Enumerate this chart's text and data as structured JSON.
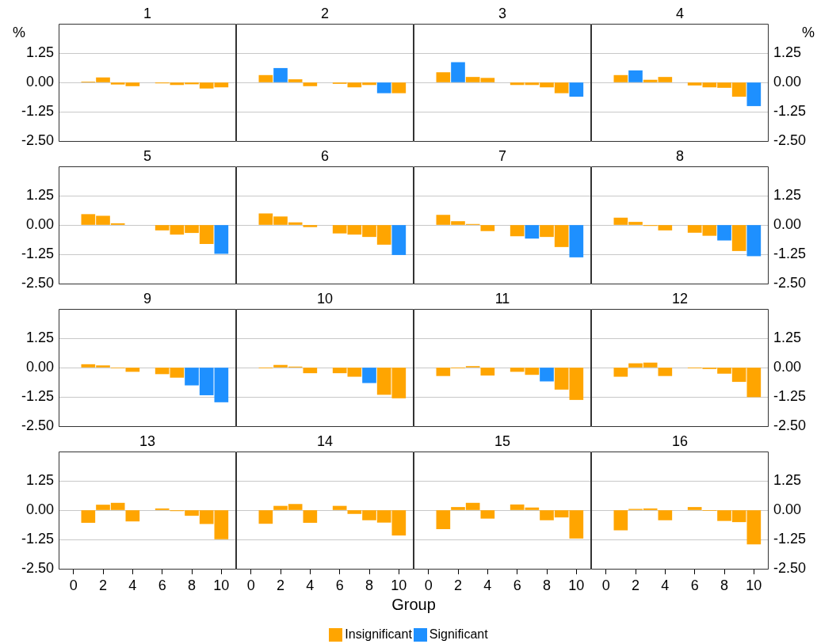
{
  "chart_data": [
    {
      "type": "bar",
      "title": "1",
      "ylabel": "%",
      "x": [
        1,
        2,
        3,
        4,
        6,
        7,
        8,
        9,
        10
      ],
      "series": [
        {
          "color": "#ffa500",
          "values": [
            0.01,
            0.2,
            -0.08,
            -0.15,
            -0.03,
            -0.1,
            -0.07,
            -0.25,
            -0.2
          ]
        },
        {
          "color": "#1e90ff",
          "values": [
            null,
            null,
            null,
            null,
            null,
            null,
            null,
            null,
            null
          ]
        }
      ],
      "xlim": [
        -1,
        11
      ],
      "xticks": [
        0,
        2,
        4,
        6,
        8,
        10
      ],
      "ylim": [
        -2.5,
        2.5
      ],
      "yticks": [
        {
          "value": -2.5,
          "label": "-2.50"
        },
        {
          "value": -1.25,
          "label": "-1.25"
        },
        {
          "value": 0,
          "label": "0.00"
        },
        1.25
      ],
      "grid": "y",
      "tick_labels": "y"
    },
    {
      "type": "bar",
      "title": "2",
      "x": [
        1,
        2,
        3,
        4,
        6,
        7,
        8,
        9,
        10
      ],
      "series": [
        {
          "color": "#ffa500",
          "values": [
            0.3,
            null,
            0.12,
            -0.15,
            -0.05,
            -0.2,
            -0.1,
            null,
            -0.45
          ]
        },
        {
          "color": "#1e90ff",
          "values": [
            null,
            0.6,
            null,
            null,
            null,
            null,
            null,
            -0.45,
            null
          ]
        }
      ],
      "xlim": [
        -1,
        11
      ],
      "xticks": [
        0,
        2,
        4,
        6,
        8,
        10
      ],
      "ylim": [
        -2.5,
        2.5
      ],
      "yticks": [
        -2.5,
        -1.25,
        0,
        1.25
      ],
      "grid": "y",
      "tick_labels": false
    },
    {
      "type": "bar",
      "title": "3",
      "x": [
        1,
        2,
        3,
        4,
        6,
        7,
        8,
        9,
        10
      ],
      "series": [
        {
          "color": "#ffa500",
          "values": [
            0.42,
            null,
            0.22,
            0.18,
            -0.1,
            -0.1,
            -0.2,
            -0.45,
            null
          ]
        },
        {
          "color": "#1e90ff",
          "values": [
            null,
            0.85,
            null,
            null,
            null,
            null,
            null,
            null,
            -0.6
          ]
        }
      ],
      "xlim": [
        -1,
        11
      ],
      "xticks": [
        0,
        2,
        4,
        6,
        8,
        10
      ],
      "ylim": [
        -2.5,
        2.5
      ],
      "yticks": [
        -2.5,
        -1.25,
        0,
        1.25
      ],
      "grid": "y",
      "tick_labels": false
    },
    {
      "type": "bar",
      "title": "4",
      "ylabel": "%",
      "x": [
        1,
        2,
        3,
        4,
        6,
        7,
        8,
        9,
        10
      ],
      "series": [
        {
          "color": "#ffa500",
          "values": [
            0.3,
            null,
            0.1,
            0.22,
            -0.12,
            -0.2,
            -0.22,
            -0.6,
            null
          ]
        },
        {
          "color": "#1e90ff",
          "values": [
            null,
            0.5,
            null,
            null,
            null,
            null,
            null,
            null,
            -1.0
          ]
        }
      ],
      "xlim": [
        -1,
        11
      ],
      "xticks": [
        0,
        2,
        4,
        6,
        8,
        10
      ],
      "ylim": [
        -2.5,
        2.5
      ],
      "yticks": [
        {
          "value": -2.5,
          "label": "-2.50"
        },
        {
          "value": -1.25,
          "label": "-1.25"
        },
        {
          "value": 0,
          "label": "0.00"
        },
        1.25
      ],
      "grid": "y",
      "tick_labels": "y"
    },
    {
      "type": "bar",
      "title": "5",
      "x": [
        1,
        2,
        3,
        4,
        6,
        7,
        8,
        9,
        10
      ],
      "series": [
        {
          "color": "#ffa500",
          "values": [
            0.45,
            0.38,
            0.06,
            null,
            -0.22,
            -0.4,
            -0.33,
            -0.8,
            null
          ]
        },
        {
          "color": "#1e90ff",
          "values": [
            null,
            null,
            null,
            null,
            null,
            null,
            null,
            null,
            -1.22
          ]
        }
      ],
      "xlim": [
        -1,
        11
      ],
      "xticks": [
        0,
        2,
        4,
        6,
        8,
        10
      ],
      "ylim": [
        -2.5,
        2.5
      ],
      "yticks": [
        {
          "value": -2.5,
          "label": "-2.50"
        },
        {
          "value": -1.25,
          "label": "-1.25"
        },
        {
          "value": 0,
          "label": "0.00"
        },
        1.25
      ],
      "grid": "y",
      "tick_labels": "y"
    },
    {
      "type": "bar",
      "title": "6",
      "x": [
        1,
        2,
        3,
        4,
        6,
        7,
        8,
        9,
        10
      ],
      "series": [
        {
          "color": "#ffa500",
          "values": [
            0.48,
            0.35,
            0.1,
            -0.08,
            -0.35,
            -0.4,
            -0.5,
            -0.83,
            null
          ]
        },
        {
          "color": "#1e90ff",
          "values": [
            null,
            null,
            null,
            null,
            null,
            null,
            null,
            null,
            -1.27
          ]
        }
      ],
      "xlim": [
        -1,
        11
      ],
      "xticks": [
        0,
        2,
        4,
        6,
        8,
        10
      ],
      "ylim": [
        -2.5,
        2.5
      ],
      "yticks": [
        -2.5,
        -1.25,
        0,
        1.25
      ],
      "grid": "y",
      "tick_labels": false
    },
    {
      "type": "bar",
      "title": "7",
      "x": [
        1,
        2,
        3,
        4,
        6,
        7,
        8,
        9,
        10
      ],
      "series": [
        {
          "color": "#ffa500",
          "values": [
            0.42,
            0.15,
            0.03,
            -0.25,
            -0.47,
            null,
            -0.5,
            -0.93,
            null
          ]
        },
        {
          "color": "#1e90ff",
          "values": [
            null,
            null,
            null,
            null,
            null,
            -0.57,
            null,
            null,
            -1.37
          ]
        }
      ],
      "xlim": [
        -1,
        11
      ],
      "xticks": [
        0,
        2,
        4,
        6,
        8,
        10
      ],
      "ylim": [
        -2.5,
        2.5
      ],
      "yticks": [
        -2.5,
        -1.25,
        0,
        1.25
      ],
      "grid": "y",
      "tick_labels": false
    },
    {
      "type": "bar",
      "title": "8",
      "x": [
        1,
        2,
        3,
        4,
        6,
        7,
        8,
        9,
        10
      ],
      "series": [
        {
          "color": "#ffa500",
          "values": [
            0.3,
            0.12,
            -0.03,
            -0.22,
            -0.32,
            -0.45,
            null,
            -1.1,
            null
          ]
        },
        {
          "color": "#1e90ff",
          "values": [
            null,
            null,
            null,
            null,
            null,
            null,
            -0.65,
            null,
            -1.32
          ]
        }
      ],
      "xlim": [
        -1,
        11
      ],
      "xticks": [
        0,
        2,
        4,
        6,
        8,
        10
      ],
      "ylim": [
        -2.5,
        2.5
      ],
      "yticks": [
        {
          "value": -2.5,
          "label": "-2.50"
        },
        {
          "value": -1.25,
          "label": "-1.25"
        },
        {
          "value": 0,
          "label": "0.00"
        },
        1.25
      ],
      "grid": "y",
      "tick_labels": "y"
    },
    {
      "type": "bar",
      "title": "9",
      "x": [
        1,
        2,
        3,
        4,
        6,
        7,
        8,
        9,
        10
      ],
      "series": [
        {
          "color": "#ffa500",
          "values": [
            0.13,
            0.08,
            -0.02,
            -0.17,
            -0.27,
            -0.42,
            null,
            null,
            null
          ]
        },
        {
          "color": "#1e90ff",
          "values": [
            null,
            null,
            null,
            null,
            null,
            null,
            -0.75,
            -1.17,
            -1.47
          ]
        }
      ],
      "xlim": [
        -1,
        11
      ],
      "xticks": [
        0,
        2,
        4,
        6,
        8,
        10
      ],
      "ylim": [
        -2.5,
        2.5
      ],
      "yticks": [
        {
          "value": -2.5,
          "label": "-2.50"
        },
        {
          "value": -1.25,
          "label": "-1.25"
        },
        {
          "value": 0,
          "label": "0.00"
        },
        1.25
      ],
      "grid": "y",
      "tick_labels": "y"
    },
    {
      "type": "bar",
      "title": "10",
      "x": [
        1,
        2,
        3,
        4,
        6,
        7,
        8,
        9,
        10
      ],
      "series": [
        {
          "color": "#ffa500",
          "values": [
            -0.01,
            0.1,
            0.03,
            -0.23,
            -0.23,
            -0.38,
            null,
            -1.15,
            -1.3
          ]
        },
        {
          "color": "#1e90ff",
          "values": [
            null,
            null,
            null,
            null,
            null,
            null,
            -0.65,
            null,
            null
          ]
        }
      ],
      "xlim": [
        -1,
        11
      ],
      "xticks": [
        0,
        2,
        4,
        6,
        8,
        10
      ],
      "ylim": [
        -2.5,
        2.5
      ],
      "yticks": [
        -2.5,
        -1.25,
        0,
        1.25
      ],
      "grid": "y",
      "tick_labels": false
    },
    {
      "type": "bar",
      "title": "11",
      "x": [
        1,
        2,
        3,
        4,
        6,
        7,
        8,
        9,
        10
      ],
      "series": [
        {
          "color": "#ffa500",
          "values": [
            -0.35,
            -0.01,
            0.05,
            -0.33,
            -0.17,
            -0.3,
            null,
            -0.93,
            -1.37
          ]
        },
        {
          "color": "#1e90ff",
          "values": [
            null,
            null,
            null,
            null,
            null,
            null,
            -0.58,
            null,
            null
          ]
        }
      ],
      "xlim": [
        -1,
        11
      ],
      "xticks": [
        0,
        2,
        4,
        6,
        8,
        10
      ],
      "ylim": [
        -2.5,
        2.5
      ],
      "yticks": [
        -2.5,
        -1.25,
        0,
        1.25
      ],
      "grid": "y",
      "tick_labels": false
    },
    {
      "type": "bar",
      "title": "12",
      "x": [
        1,
        2,
        3,
        4,
        6,
        7,
        8,
        9,
        10
      ],
      "series": [
        {
          "color": "#ffa500",
          "values": [
            -0.38,
            0.17,
            0.2,
            -0.35,
            -0.01,
            -0.05,
            -0.25,
            -0.6,
            -1.25
          ]
        }
      ],
      "xlim": [
        -1,
        11
      ],
      "xticks": [
        0,
        2,
        4,
        6,
        8,
        10
      ],
      "ylim": [
        -2.5,
        2.5
      ],
      "yticks": [
        {
          "value": -2.5,
          "label": "-2.50"
        },
        {
          "value": -1.25,
          "label": "-1.25"
        },
        {
          "value": 0,
          "label": "0.00"
        },
        1.25
      ],
      "grid": "y",
      "tick_labels": "y"
    },
    {
      "type": "bar",
      "title": "13",
      "x": [
        1,
        2,
        3,
        4,
        6,
        7,
        8,
        9,
        10
      ],
      "series": [
        {
          "color": "#ffa500",
          "values": [
            -0.53,
            0.22,
            0.3,
            -0.47,
            0.06,
            -0.03,
            -0.23,
            -0.58,
            -1.23
          ]
        }
      ],
      "xlim": [
        -1,
        11
      ],
      "xticks": [
        0,
        2,
        4,
        6,
        8,
        10
      ],
      "ylim": [
        -2.5,
        2.5
      ],
      "yticks": [
        {
          "value": -2.5,
          "label": "-2.50"
        },
        {
          "value": -1.25,
          "label": "-1.25"
        },
        {
          "value": 0,
          "label": "0.00"
        },
        1.25
      ],
      "grid": "y"
    },
    {
      "type": "bar",
      "title": "14",
      "xlabel": "Group",
      "x": [
        1,
        2,
        3,
        4,
        6,
        7,
        8,
        9,
        10
      ],
      "series": [
        {
          "color": "#ffa500",
          "values": [
            -0.57,
            0.17,
            0.25,
            -0.53,
            0.17,
            -0.15,
            -0.42,
            -0.52,
            -1.07
          ]
        }
      ],
      "xlim": [
        -1,
        11
      ],
      "xticks": [
        0,
        2,
        4,
        6,
        8,
        10
      ],
      "ylim": [
        -2.5,
        2.5
      ],
      "yticks": [
        -2.5,
        -1.25,
        0,
        1.25
      ],
      "grid": "y",
      "tick_labels": "x"
    },
    {
      "type": "bar",
      "title": "15",
      "x": [
        1,
        2,
        3,
        4,
        6,
        7,
        8,
        9,
        10
      ],
      "series": [
        {
          "color": "#ffa500",
          "values": [
            -0.8,
            0.12,
            0.3,
            -0.35,
            0.23,
            0.1,
            -0.42,
            -0.3,
            -1.2
          ]
        }
      ],
      "xlim": [
        -1,
        11
      ],
      "xticks": [
        0,
        2,
        4,
        6,
        8,
        10
      ],
      "ylim": [
        -2.5,
        2.5
      ],
      "yticks": [
        -2.5,
        -1.25,
        0,
        1.25
      ],
      "grid": "y",
      "tick_labels": "x"
    },
    {
      "type": "bar",
      "title": "16",
      "x": [
        1,
        2,
        3,
        4,
        6,
        7,
        8,
        9,
        10
      ],
      "series": [
        {
          "name": "Insignificant",
          "color": "#ffa500",
          "values": [
            -0.85,
            0.04,
            0.06,
            -0.42,
            0.12,
            -0.02,
            -0.45,
            -0.5,
            -1.45
          ]
        },
        {
          "name": "Significant",
          "color": "#1e90ff",
          "values": [
            null,
            null,
            null,
            null,
            null,
            null,
            null,
            null,
            null
          ]
        }
      ],
      "xlim": [
        -1,
        11
      ],
      "xticks": [
        0,
        2,
        4,
        6,
        8,
        10
      ],
      "ylim": [
        -2.5,
        2.5
      ],
      "yticks": [
        {
          "value": -2.5,
          "label": "-2.50"
        },
        {
          "value": -1.25,
          "label": "-1.25"
        },
        {
          "value": 0,
          "label": "0.00"
        },
        1.25
      ],
      "grid": "y",
      "legend": "bottom"
    }
  ]
}
